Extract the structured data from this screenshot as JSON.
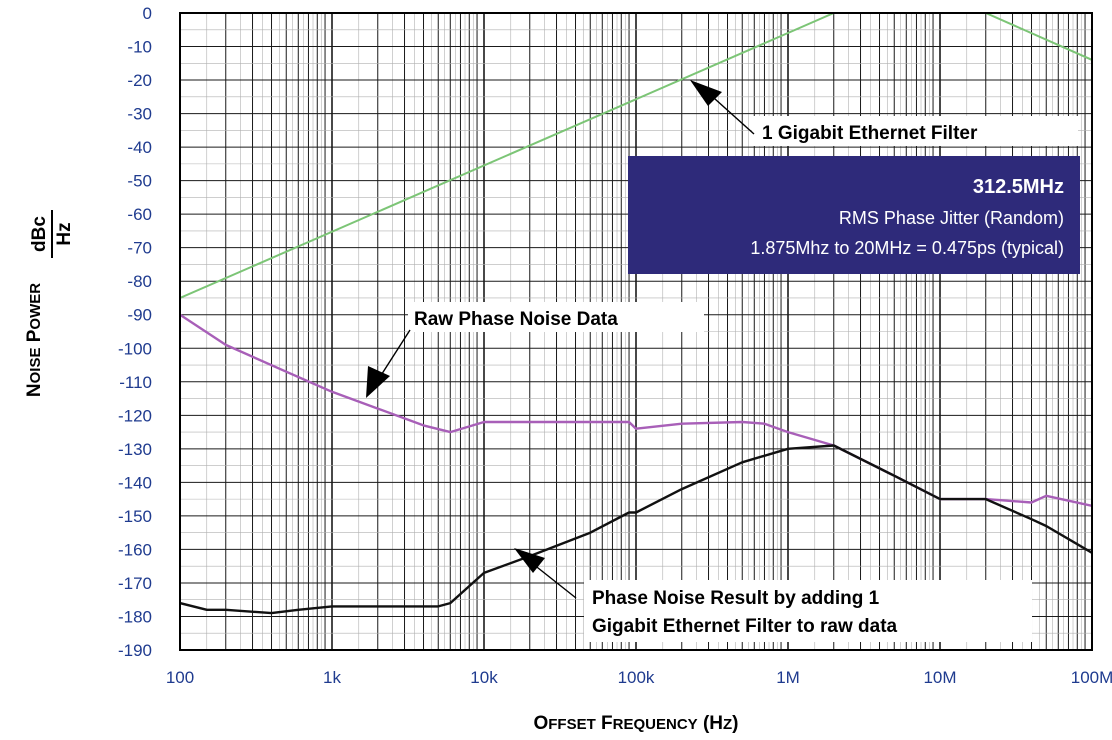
{
  "chart_data": {
    "type": "line",
    "xscale": "log",
    "xlim": [
      100,
      100000000
    ],
    "ylim": [
      -190,
      0
    ],
    "x_ticks": [
      100,
      1000,
      10000,
      100000,
      1000000,
      10000000,
      100000000
    ],
    "x_tick_labels": [
      "100",
      "1k",
      "10k",
      "100k",
      "1M",
      "10M",
      "100M"
    ],
    "y_ticks": [
      0,
      -10,
      -20,
      -30,
      -40,
      -50,
      -60,
      -70,
      -80,
      -90,
      -100,
      -110,
      -120,
      -130,
      -140,
      -150,
      -160,
      -170,
      -180,
      -190
    ],
    "y_tick_labels": [
      "0",
      "-10",
      "-20",
      "-30",
      "-40",
      "-50",
      "-60",
      "-70",
      "-80",
      "-90",
      "-100",
      "-110",
      "-120",
      "-130",
      "-140",
      "-150",
      "-160",
      "-170",
      "-180",
      "-190"
    ],
    "xlabel": {
      "parts": [
        {
          "text": "O",
          "size": "big"
        },
        {
          "text": "FFSET",
          "size": "small"
        },
        {
          "text": " ",
          "size": "big"
        },
        {
          "text": "F",
          "size": "big"
        },
        {
          "text": "REQUENCY",
          "size": "small"
        },
        {
          "text": " (H",
          "size": "big"
        },
        {
          "text": "Z",
          "size": "small"
        },
        {
          "text": ")",
          "size": "big"
        }
      ]
    },
    "ylabel": {
      "parts": [
        {
          "text": "N",
          "size": "big"
        },
        {
          "text": "OISE",
          "size": "small"
        },
        {
          "text": " ",
          "size": "big"
        },
        {
          "text": "P",
          "size": "big"
        },
        {
          "text": "OWER",
          "size": "small"
        }
      ],
      "unit_numerator": "dBc",
      "unit_denominator": "Hz"
    },
    "grid": true,
    "series": [
      {
        "color": "#7cc576",
        "x": [
          100,
          2000000,
          20000000,
          100000000
        ],
        "y": [
          -85,
          0,
          0,
          -14
        ]
      },
      {
        "color": "#a85fb8",
        "x": [
          100,
          200,
          500,
          1000,
          2000,
          4000,
          6000,
          10000,
          20000,
          50000,
          90000,
          100000,
          200000,
          500000,
          700000,
          1000000,
          2000000,
          5000000,
          10000000,
          20000000,
          40000000,
          50000000,
          100000000
        ],
        "y": [
          -90,
          -99,
          -107,
          -113,
          -118,
          -123,
          -125,
          -122,
          -122,
          -122,
          -122,
          -124,
          -122.5,
          -122,
          -122.5,
          -125,
          -129,
          -138,
          -145,
          -145,
          -146,
          -144,
          -147
        ]
      },
      {
        "color": "#111111",
        "x": [
          100,
          150,
          200,
          400,
          600,
          1000,
          2000,
          5000,
          6000,
          10000,
          20000,
          50000,
          90000,
          100000,
          200000,
          500000,
          1000000,
          2000000,
          5000000,
          10000000,
          20000000,
          40000000,
          50000000,
          100000000
        ],
        "y": [
          -176,
          -178,
          -178,
          -179,
          -178,
          -177,
          -177,
          -177,
          -176,
          -167,
          -162,
          -155,
          -149,
          -149,
          -142,
          -134,
          -130,
          -129,
          -138,
          -145,
          -145,
          -151,
          -153,
          -161
        ]
      }
    ],
    "annotations": [
      {
        "id": "ann-gbe",
        "text": "1 Gigabit Ethernet Filter"
      },
      {
        "id": "ann-raw",
        "text": "Raw Phase Noise Data"
      },
      {
        "id": "ann-result",
        "lines": [
          "Phase Noise Result by adding 1",
          "Gigabit Ethernet Filter to raw data"
        ]
      }
    ],
    "info_box": {
      "color": "#2e2a7a",
      "title": "312.5MHz",
      "line1": "RMS Phase Jitter  (Random)",
      "line2": "1.875Mhz to 20MHz = 0.475ps (typical)"
    }
  }
}
